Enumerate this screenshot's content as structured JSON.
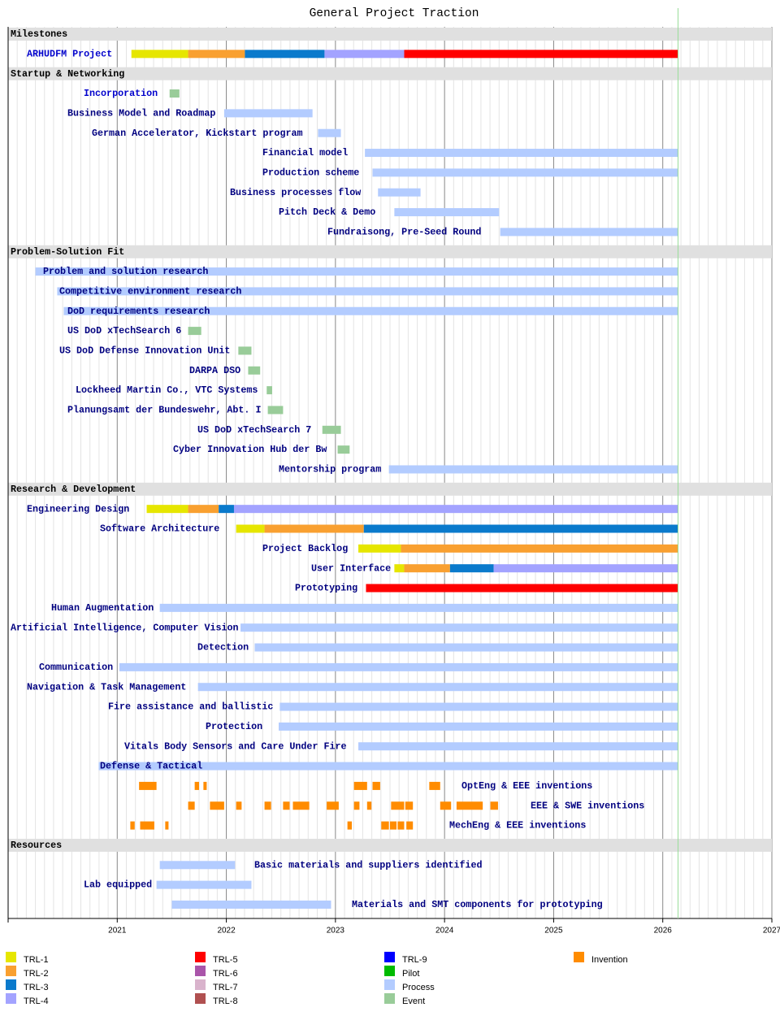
{
  "chart_data": {
    "type": "gantt",
    "title": "General Project Traction",
    "xlim": [
      2020,
      2027
    ],
    "xticks": [
      2021,
      2022,
      2023,
      2024,
      2025,
      2026,
      2027
    ],
    "today": 2026.14,
    "legend": [
      {
        "name": "TRL-1",
        "color": "#e6e600"
      },
      {
        "name": "TRL-2",
        "color": "#f9a030"
      },
      {
        "name": "TRL-3",
        "color": "#0a7acc"
      },
      {
        "name": "TRL-4",
        "color": "#a3a3ff"
      },
      {
        "name": "TRL-5",
        "color": "#ff0000"
      },
      {
        "name": "TRL-6",
        "color": "#aa55aa"
      },
      {
        "name": "TRL-7",
        "color": "#d9b3cc"
      },
      {
        "name": "TRL-8",
        "color": "#b05050"
      },
      {
        "name": "TRL-9",
        "color": "#0000ff"
      },
      {
        "name": "Pilot",
        "color": "#00bb00"
      },
      {
        "name": "Process",
        "color": "#b3ccff"
      },
      {
        "name": "Event",
        "color": "#99cc99"
      },
      {
        "name": "Invention",
        "color": "#ff8c00"
      }
    ],
    "sections": [
      {
        "name": "Milestones",
        "tasks": [
          {
            "name": "ARHUDFM Project",
            "segments": [
              [
                2021.13,
                2021.65,
                0
              ],
              [
                2021.65,
                2022.17,
                1
              ],
              [
                2022.17,
                2022.9,
                2
              ],
              [
                2022.9,
                2023.63,
                3
              ],
              [
                2023.63,
                2026.14,
                4
              ]
            ]
          }
        ]
      },
      {
        "name": "Startup & Networking",
        "tasks": [
          {
            "name": "Incorporation",
            "segments": [
              [
                2021.48,
                2021.57,
                11
              ]
            ]
          },
          {
            "name": "Business Model and Roadmap",
            "segments": [
              [
                2021.98,
                2022.79,
                10
              ]
            ]
          },
          {
            "name": "German Accelerator, Kickstart program",
            "segments": [
              [
                2022.84,
                2023.05,
                10
              ]
            ]
          },
          {
            "name": "Financial model",
            "segments": [
              [
                2023.27,
                2026.14,
                10
              ]
            ]
          },
          {
            "name": "Production scheme",
            "segments": [
              [
                2023.34,
                2026.14,
                10
              ]
            ]
          },
          {
            "name": "Business processes flow",
            "segments": [
              [
                2023.39,
                2023.78,
                10
              ]
            ]
          },
          {
            "name": "Pitch Deck & Demo",
            "segments": [
              [
                2023.54,
                2024.5,
                10
              ]
            ]
          },
          {
            "name": "Fundraisong, Pre-Seed Round",
            "segments": [
              [
                2024.51,
                2026.14,
                10
              ]
            ]
          }
        ]
      },
      {
        "name": "Problem-Solution Fit",
        "tasks": [
          {
            "name": "Problem and solution research",
            "segments": [
              [
                2020.25,
                2026.14,
                10
              ]
            ]
          },
          {
            "name": "Competitive environment research",
            "segments": [
              [
                2020.45,
                2026.14,
                10
              ]
            ]
          },
          {
            "name": "DoD requirements research",
            "segments": [
              [
                2020.51,
                2026.14,
                10
              ]
            ]
          },
          {
            "name": "US DoD xTechSearch 6",
            "segments": [
              [
                2021.65,
                2021.77,
                11
              ]
            ]
          },
          {
            "name": "US DoD Defense Innovation Unit",
            "segments": [
              [
                2022.11,
                2022.23,
                11
              ]
            ]
          },
          {
            "name": "DARPA DSO",
            "segments": [
              [
                2022.2,
                2022.31,
                11
              ]
            ]
          },
          {
            "name": "Lockheed Martin Co., VTC Systems",
            "segments": [
              [
                2022.37,
                2022.42,
                11
              ]
            ]
          },
          {
            "name": "Planungsamt der Bundeswehr, Abt. I",
            "segments": [
              [
                2022.38,
                2022.52,
                11
              ]
            ]
          },
          {
            "name": "US DoD xTechSearch 7",
            "segments": [
              [
                2022.88,
                2023.05,
                11
              ]
            ]
          },
          {
            "name": "Cyber Innovation Hub der Bw",
            "segments": [
              [
                2023.02,
                2023.13,
                11
              ]
            ]
          },
          {
            "name": "Mentorship program",
            "segments": [
              [
                2023.49,
                2026.14,
                10
              ]
            ]
          }
        ]
      },
      {
        "name": "Research & Development",
        "tasks": [
          {
            "name": "Engineering Design",
            "segments": [
              [
                2021.27,
                2021.65,
                0
              ],
              [
                2021.65,
                2021.93,
                1
              ],
              [
                2021.93,
                2022.07,
                2
              ],
              [
                2022.07,
                2026.14,
                3
              ]
            ]
          },
          {
            "name": "Software Architecture",
            "segments": [
              [
                2022.09,
                2022.35,
                0
              ],
              [
                2022.35,
                2023.26,
                1
              ],
              [
                2023.26,
                2026.14,
                2
              ]
            ]
          },
          {
            "name": "Project Backlog",
            "segments": [
              [
                2023.21,
                2023.6,
                0
              ],
              [
                2023.6,
                2026.14,
                1
              ]
            ]
          },
          {
            "name": "User Interface",
            "segments": [
              [
                2023.54,
                2023.63,
                0
              ],
              [
                2023.63,
                2024.05,
                1
              ],
              [
                2024.05,
                2024.45,
                2
              ],
              [
                2024.45,
                2026.14,
                3
              ]
            ]
          },
          {
            "name": "Prototyping",
            "segments": [
              [
                2023.28,
                2026.14,
                4
              ]
            ]
          },
          {
            "name": "Human Augmentation",
            "segments": [
              [
                2021.39,
                2026.14,
                10
              ]
            ]
          },
          {
            "name": "Artificial Intelligence, Computer Vision",
            "segments": [
              [
                2022.13,
                2026.14,
                10
              ]
            ]
          },
          {
            "name": "Detection",
            "segments": [
              [
                2022.26,
                2026.14,
                10
              ]
            ]
          },
          {
            "name": "Communication",
            "segments": [
              [
                2021.02,
                2026.14,
                10
              ]
            ]
          },
          {
            "name": "Navigation & Task Management",
            "segments": [
              [
                2021.74,
                2026.14,
                10
              ]
            ]
          },
          {
            "name": "Fire assistance and ballistic",
            "segments": [
              [
                2022.49,
                2026.14,
                10
              ]
            ]
          },
          {
            "name": "Protection",
            "segments": [
              [
                2022.48,
                2026.14,
                10
              ]
            ]
          },
          {
            "name": "Vitals Body Sensors and Care Under Fire",
            "segments": [
              [
                2023.21,
                2026.14,
                10
              ]
            ]
          },
          {
            "name": "Defense & Tactical",
            "segments": [
              [
                2020.83,
                2026.14,
                10
              ]
            ]
          },
          {
            "name": "OptEng & EEE inventions",
            "segments": [
              [
                2021.2,
                2021.36,
                12
              ],
              [
                2021.71,
                2021.75,
                12
              ],
              [
                2021.79,
                2021.82,
                12
              ],
              [
                2023.17,
                2023.29,
                12
              ],
              [
                2023.34,
                2023.41,
                12
              ],
              [
                2023.86,
                2023.96,
                12
              ]
            ]
          },
          {
            "name": "EEE & SWE inventions",
            "segments": [
              [
                2021.65,
                2021.71,
                12
              ],
              [
                2021.85,
                2021.98,
                12
              ],
              [
                2022.09,
                2022.14,
                12
              ],
              [
                2022.35,
                2022.41,
                12
              ],
              [
                2022.52,
                2022.58,
                12
              ],
              [
                2022.61,
                2022.76,
                12
              ],
              [
                2022.92,
                2023.03,
                12
              ],
              [
                2023.17,
                2023.22,
                12
              ],
              [
                2023.29,
                2023.33,
                12
              ],
              [
                2023.51,
                2023.63,
                12
              ],
              [
                2023.64,
                2023.71,
                12
              ],
              [
                2023.96,
                2024.06,
                12
              ],
              [
                2024.11,
                2024.35,
                12
              ],
              [
                2024.42,
                2024.49,
                12
              ]
            ]
          },
          {
            "name": "MechEng & EEE inventions",
            "segments": [
              [
                2021.12,
                2021.16,
                12
              ],
              [
                2021.21,
                2021.34,
                12
              ],
              [
                2021.44,
                2021.47,
                12
              ],
              [
                2023.11,
                2023.15,
                12
              ],
              [
                2023.42,
                2023.49,
                12
              ],
              [
                2023.5,
                2023.56,
                12
              ],
              [
                2023.57,
                2023.63,
                12
              ],
              [
                2023.65,
                2023.71,
                12
              ]
            ]
          }
        ]
      },
      {
        "name": "Resources",
        "tasks": [
          {
            "name": "Basic materials and suppliers identified",
            "segments": [
              [
                2021.39,
                2022.08,
                10
              ]
            ]
          },
          {
            "name": "Lab equipped",
            "segments": [
              [
                2021.36,
                2022.23,
                10
              ]
            ]
          },
          {
            "name": "Materials and SMT components for prototyping",
            "segments": [
              [
                2021.5,
                2022.96,
                10
              ]
            ]
          }
        ]
      }
    ]
  }
}
